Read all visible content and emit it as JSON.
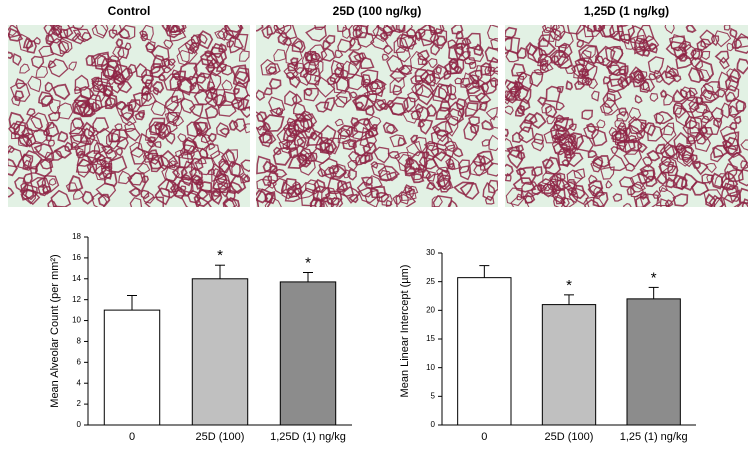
{
  "images": [
    {
      "title": "Control"
    },
    {
      "title": "25D (100 ng/kg)"
    },
    {
      "title": "1,25D (1 ng/kg)"
    }
  ],
  "chart_data": [
    {
      "type": "bar",
      "y_label": "Mean Alveolar Count (per mm²)",
      "categories": [
        "0",
        "25D (100)",
        "1,25D (1) ng/kg"
      ],
      "values": [
        11.0,
        14.0,
        13.7
      ],
      "errors": [
        1.4,
        1.3,
        0.9
      ],
      "colors": [
        "#ffffff",
        "#c0c0c0",
        "#8c8c8c"
      ],
      "significance": [
        null,
        "*",
        "*"
      ],
      "ylim": [
        0,
        18
      ],
      "yticks": [
        0,
        2,
        4,
        6,
        8,
        10,
        12,
        14,
        16,
        18
      ]
    },
    {
      "type": "bar",
      "y_label": "Mean Linear Intercept (µm)",
      "categories": [
        "0",
        "25D (100)",
        "1,25 (1) ng/kg"
      ],
      "values": [
        25.7,
        21.0,
        22.0
      ],
      "errors": [
        2.1,
        1.7,
        2.0
      ],
      "colors": [
        "#ffffff",
        "#c0c0c0",
        "#8c8c8c"
      ],
      "significance": [
        null,
        "*",
        "*"
      ],
      "ylim": [
        0,
        30
      ],
      "yticks": [
        0,
        5,
        10,
        15,
        20,
        25,
        30
      ]
    }
  ]
}
